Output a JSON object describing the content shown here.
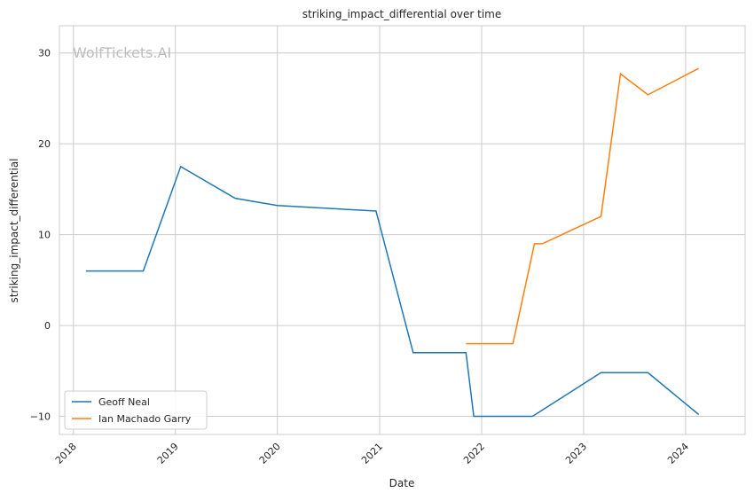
{
  "watermark": "WolfTickets.AI",
  "chart_data": {
    "type": "line",
    "title": "striking_impact_differential over time",
    "xlabel": "Date",
    "ylabel": "striking_impact_differential",
    "xlim": [
      "2017-11-12",
      "2024-08-01"
    ],
    "ylim": [
      -12,
      33
    ],
    "x_ticks": [
      "2018-01-01",
      "2019-01-01",
      "2020-01-01",
      "2021-01-01",
      "2022-01-01",
      "2023-01-01",
      "2024-01-01"
    ],
    "x_tick_labels": [
      "2018",
      "2019",
      "2020",
      "2021",
      "2022",
      "2023",
      "2024"
    ],
    "y_ticks": [
      -10,
      0,
      10,
      20,
      30
    ],
    "y_tick_labels": [
      "−10",
      "0",
      "10",
      "20",
      "30"
    ],
    "grid": true,
    "legend_position": "lower-left",
    "series": [
      {
        "name": "Geoff Neal",
        "color": "#1f77b4",
        "points": [
          {
            "x": "2018-02-15",
            "y": 6.0
          },
          {
            "x": "2018-09-08",
            "y": 6.0
          },
          {
            "x": "2019-01-20",
            "y": 17.5
          },
          {
            "x": "2019-08-03",
            "y": 14.0
          },
          {
            "x": "2020-01-01",
            "y": 13.2
          },
          {
            "x": "2020-12-19",
            "y": 12.6
          },
          {
            "x": "2021-05-01",
            "y": -3.0
          },
          {
            "x": "2021-11-06",
            "y": -3.0
          },
          {
            "x": "2021-12-04",
            "y": -10.0
          },
          {
            "x": "2022-07-02",
            "y": -10.0
          },
          {
            "x": "2023-03-04",
            "y": -5.2
          },
          {
            "x": "2023-08-19",
            "y": -5.2
          },
          {
            "x": "2024-02-17",
            "y": -9.8
          }
        ]
      },
      {
        "name": "Ian Machado Garry",
        "color": "#ff7f0e",
        "points": [
          {
            "x": "2021-11-06",
            "y": -2.0
          },
          {
            "x": "2022-04-23",
            "y": -2.0
          },
          {
            "x": "2022-07-09",
            "y": 9.0
          },
          {
            "x": "2022-08-06",
            "y": 9.0
          },
          {
            "x": "2023-03-04",
            "y": 12.0
          },
          {
            "x": "2023-05-13",
            "y": 27.7
          },
          {
            "x": "2023-08-19",
            "y": 25.4
          },
          {
            "x": "2024-02-17",
            "y": 28.3
          }
        ]
      }
    ]
  }
}
